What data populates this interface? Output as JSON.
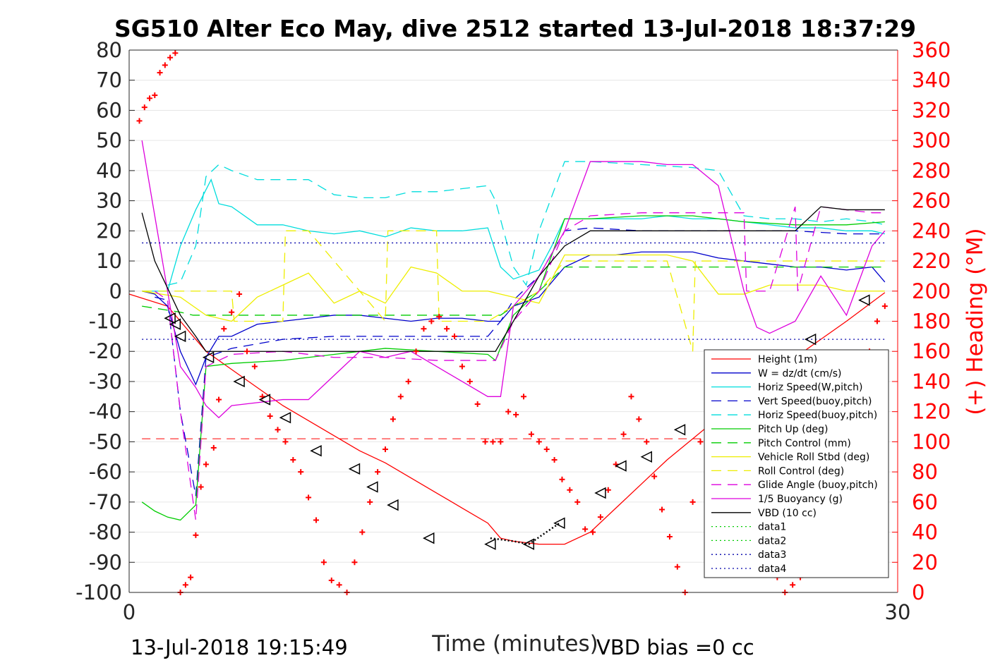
{
  "chart_data": {
    "type": "line",
    "title": "SG510 Alter Eco May, dive 2512 started 13-Jul-2018 18:37:29",
    "xlabel": "Time (minutes)",
    "ylabel_right": "(+) Heading (°M)",
    "xlim": [
      0,
      30
    ],
    "ylim_left": [
      -100,
      80
    ],
    "ylim_right": [
      0,
      360
    ],
    "x_ticks": [
      "0",
      "30"
    ],
    "y_ticks_left": [
      "80",
      "70",
      "60",
      "50",
      "40",
      "30",
      "20",
      "10",
      "0",
      "-10",
      "-20",
      "-30",
      "-40",
      "-50",
      "-60",
      "-70",
      "-80",
      "-90",
      "-100"
    ],
    "y_ticks_right": [
      "360",
      "340",
      "320",
      "300",
      "280",
      "260",
      "240",
      "220",
      "200",
      "180",
      "160",
      "140",
      "120",
      "100",
      "80",
      "60",
      "40",
      "20",
      "0"
    ],
    "grid": "horizontal",
    "legend_placement": "bottom-right",
    "footer_left": "13-Jul-2018 19:15:49",
    "footer_right": "VBD bias =0 cc",
    "colors": {
      "red": "#ff0000",
      "blue": "#0000cc",
      "cyan": "#00dddd",
      "green": "#00cc00",
      "yellow": "#eeee00",
      "magenta": "#dd00dd",
      "black": "#000000",
      "navy": "#0000aa"
    },
    "series": [
      {
        "name": "Height (1m)",
        "color": "#ff0000",
        "style": "solid",
        "x": [
          0,
          1.5,
          2,
          3,
          4,
          5,
          6,
          7,
          8,
          9,
          10,
          11,
          12,
          13,
          14,
          14.5,
          15,
          16,
          17,
          18,
          19,
          20,
          21,
          22,
          23,
          24,
          25,
          26,
          27,
          28,
          29.5
        ],
        "y": [
          -1,
          -5,
          -10,
          -20,
          -26,
          -32,
          -38,
          -43,
          -48,
          -53,
          -57,
          -62,
          -67,
          -72,
          -77,
          -82,
          -83,
          -84,
          -84,
          -80,
          -72,
          -64,
          -56,
          -49,
          -42,
          -35,
          -28,
          -22,
          -16,
          -10,
          -0.5
        ]
      },
      {
        "name": "W = dz/dt (cm/s)",
        "color": "#0000cc",
        "style": "solid",
        "x": [
          0.5,
          1,
          1.5,
          2,
          2.6,
          3,
          3.5,
          4,
          5,
          6,
          7,
          8,
          9,
          10,
          11,
          12,
          13,
          14,
          14.5,
          15,
          16,
          16.5,
          17,
          18,
          19,
          20,
          21,
          22,
          23,
          24,
          25,
          26,
          27,
          28,
          29,
          29.5
        ],
        "y": [
          0,
          -1,
          -5,
          -20,
          -31,
          -22,
          -15,
          -15,
          -11,
          -10,
          -9,
          -8,
          -8,
          -9,
          -10,
          -9,
          -9,
          -10,
          -10,
          -5,
          -2,
          3,
          8,
          12,
          12,
          13,
          13,
          13,
          11,
          10,
          9,
          8,
          8,
          7,
          8,
          3
        ]
      },
      {
        "name": "Horiz Speed(W,pitch)",
        "color": "#00dddd",
        "style": "solid",
        "x": [
          0.5,
          1.5,
          2,
          2.6,
          3.2,
          3.5,
          4,
          5,
          6,
          7,
          8,
          9,
          10,
          11,
          12,
          13,
          14,
          14.5,
          15,
          16,
          16.5,
          17,
          18,
          19,
          20,
          21,
          22,
          23,
          24,
          25,
          26,
          27,
          28,
          29,
          29.5
        ],
        "y": [
          0,
          0,
          15,
          27,
          37,
          29,
          28,
          22,
          22,
          20,
          19,
          20,
          18,
          21,
          20,
          20,
          21,
          8,
          4,
          7,
          15,
          24,
          24,
          24,
          24,
          25,
          24,
          24,
          23,
          22,
          21,
          21,
          20,
          20,
          19
        ]
      },
      {
        "name": "Vert Speed(buoy,pitch)",
        "color": "#0000cc",
        "style": "dashed",
        "x": [
          1,
          1.5,
          2,
          2.6,
          3,
          4,
          6,
          8,
          10,
          12,
          14,
          14.5,
          15,
          16,
          17,
          18,
          20,
          22,
          24,
          26,
          28,
          29.5
        ],
        "y": [
          -2,
          -3,
          -40,
          -68,
          -22,
          -19,
          -16,
          -15,
          -15,
          -15,
          -15,
          -10,
          -3,
          5,
          20,
          21,
          20,
          20,
          20,
          20,
          19,
          19
        ]
      },
      {
        "name": "Horiz Speed(buoy,pitch)",
        "color": "#00dddd",
        "style": "dashed",
        "x": [
          1.5,
          2,
          2.6,
          3,
          3.5,
          4,
          5,
          6,
          7,
          8,
          9,
          10,
          11,
          12,
          13,
          14,
          14.3,
          15,
          15.5,
          16,
          17,
          18,
          20,
          22,
          23,
          24,
          25,
          26,
          27,
          28,
          29,
          29.5
        ],
        "y": [
          2,
          3,
          15,
          38,
          42,
          40,
          37,
          37,
          37,
          32,
          31,
          31,
          33,
          33,
          34,
          35,
          30,
          8,
          2,
          20,
          43,
          43,
          42,
          41,
          40,
          25,
          24,
          24,
          23,
          24,
          23,
          22
        ]
      },
      {
        "name": "Pitch Up (deg)",
        "color": "#00cc00",
        "style": "solid",
        "x": [
          0.5,
          1,
          1.5,
          2,
          2.6,
          3,
          4,
          6,
          8,
          10,
          12,
          14,
          14.3,
          15,
          16,
          17,
          18,
          20,
          22,
          24,
          26,
          28,
          29.5
        ],
        "y": [
          -70,
          -73,
          -75,
          -76,
          -71,
          -25,
          -24,
          -23,
          -21,
          -19,
          -20,
          -21,
          -23,
          -8,
          0,
          24,
          24,
          25,
          25,
          23,
          22,
          22,
          23
        ]
      },
      {
        "name": "Pitch Control (mm)",
        "color": "#00cc00",
        "style": "dashed",
        "x": [
          0.5,
          2,
          2.5,
          14,
          14.5,
          15,
          16,
          17,
          29.5
        ],
        "y": [
          -5,
          -7,
          -8,
          -8,
          -8,
          -5,
          0,
          8,
          8
        ]
      },
      {
        "name": "Vehicle Roll Stbd (deg)",
        "color": "#eeee00",
        "style": "solid",
        "x": [
          0.5,
          2,
          3,
          4,
          5,
          6,
          7,
          8,
          9,
          10,
          11,
          12,
          13,
          14,
          15,
          16,
          17,
          18,
          19,
          20,
          21,
          22,
          23,
          24,
          25,
          26,
          27,
          28,
          29,
          29.5
        ],
        "y": [
          0,
          -2,
          -8,
          -10,
          -2,
          2,
          6,
          -4,
          0,
          -4,
          8,
          6,
          0,
          0,
          -2,
          -4,
          12,
          12,
          12,
          12,
          12,
          10,
          -1,
          -1,
          2,
          2,
          2,
          0,
          0,
          0
        ]
      },
      {
        "name": "Roll Control (deg)",
        "color": "#eeee00",
        "style": "dashed",
        "x": [
          0.5,
          4,
          4.1,
          5,
          6,
          6.1,
          7,
          10,
          10.1,
          11,
          12,
          12.1,
          14,
          16,
          17,
          19,
          20,
          21,
          22,
          22.1,
          24,
          29.5
        ],
        "y": [
          0,
          0,
          -10,
          -10,
          -10,
          20,
          20,
          -10,
          20,
          20,
          20,
          -10,
          -10,
          0,
          10,
          10,
          10,
          10,
          -20,
          10,
          10,
          10
        ]
      },
      {
        "name": "Glide Angle (buoy,pitch)",
        "color": "#dd00dd",
        "style": "dashed",
        "x": [
          1,
          1.5,
          2,
          2.6,
          3,
          4,
          6,
          8,
          10,
          12,
          14,
          14.3,
          15,
          16,
          17,
          18,
          20,
          22,
          24,
          24.1,
          25,
          26,
          26.1,
          27,
          28,
          29,
          29.5
        ],
        "y": [
          0,
          -3,
          -40,
          -76,
          -25,
          -21,
          -20,
          -22,
          -22,
          -23,
          -23,
          -23,
          -10,
          0,
          20,
          25,
          26,
          26,
          26,
          0,
          0,
          28,
          0,
          28,
          27,
          26,
          26
        ]
      },
      {
        "name": "1/5 Buoyancy (g)",
        "color": "#dd00dd",
        "style": "solid",
        "x": [
          0.5,
          1,
          1.5,
          2,
          2.6,
          3,
          3.5,
          4,
          5,
          6,
          7,
          8,
          9,
          10,
          11,
          12,
          13,
          14,
          14.5,
          15,
          16,
          17,
          18,
          19,
          20,
          21,
          22,
          23,
          24,
          24.5,
          25,
          26,
          27,
          28,
          29,
          29.5
        ],
        "y": [
          50,
          25,
          0,
          -25,
          -32,
          -38,
          -42,
          -38,
          -37,
          -36,
          -36,
          -28,
          -20,
          -22,
          -20,
          -25,
          -30,
          -35,
          -35,
          -5,
          5,
          20,
          43,
          43,
          43,
          42,
          42,
          35,
          0,
          -12,
          -14,
          -10,
          5,
          -8,
          15,
          20
        ]
      },
      {
        "name": "VBD (10 cc)",
        "color": "#000000",
        "style": "solid",
        "x": [
          0.5,
          1,
          2,
          2.6,
          3,
          4,
          5,
          6,
          8,
          10,
          12,
          14,
          14.3,
          15,
          16,
          17,
          18,
          20,
          22,
          24,
          26,
          27,
          28,
          29,
          29.5
        ],
        "y": [
          26,
          10,
          -8,
          -15,
          -20,
          -20,
          -20,
          -20,
          -20,
          -20,
          -20,
          -20,
          -20,
          -10,
          5,
          15,
          20,
          20,
          20,
          20,
          20,
          28,
          27,
          27,
          27
        ]
      },
      {
        "name": "data1",
        "color": "#00cc00",
        "style": "dotted",
        "x": [],
        "y": []
      },
      {
        "name": "data2",
        "color": "#00cc00",
        "style": "dotted",
        "x": [],
        "y": []
      },
      {
        "name": "data3",
        "color": "#0000aa",
        "style": "dotted",
        "x": [
          0.5,
          29.5
        ],
        "y": [
          16,
          16
        ]
      },
      {
        "name": "data4",
        "color": "#0000aa",
        "style": "dotted",
        "x": [
          0.5,
          29.5
        ],
        "y": [
          -16,
          -16
        ]
      }
    ],
    "red_dashed_line": {
      "color": "#ff0000",
      "y": -49
    },
    "heading_points": {
      "color": "#ff0000",
      "x": [
        0.4,
        0.6,
        0.8,
        1,
        1.2,
        1.4,
        1.6,
        1.8,
        2,
        2.2,
        2.4,
        2.6,
        2.8,
        3,
        3.3,
        3.5,
        3.7,
        4,
        4.3,
        4.6,
        4.9,
        5.2,
        5.5,
        5.8,
        6.1,
        6.4,
        6.7,
        7,
        7.3,
        7.6,
        7.9,
        8.2,
        8.5,
        8.8,
        9.1,
        9.4,
        9.7,
        10,
        10.3,
        10.6,
        10.9,
        11.2,
        11.5,
        11.8,
        12.1,
        12.4,
        12.7,
        13,
        13.3,
        13.6,
        13.9,
        14.2,
        14.5,
        14.8,
        15.1,
        15.4,
        15.7,
        16,
        16.3,
        16.6,
        16.9,
        17.2,
        17.5,
        17.8,
        18.1,
        18.4,
        18.7,
        19,
        19.3,
        19.6,
        19.9,
        20.2,
        20.5,
        20.8,
        21.1,
        21.4,
        21.7,
        22,
        22.3,
        22.6,
        22.9,
        23.2,
        23.5,
        23.8,
        24.1,
        24.4,
        24.7,
        25,
        25.3,
        25.6,
        25.9,
        26.2,
        26.5,
        26.8,
        27.1,
        27.4,
        27.7,
        28,
        28.3,
        28.6,
        28.9,
        29.2,
        29.5
      ],
      "y": [
        313,
        322,
        328,
        330,
        345,
        350,
        355,
        358,
        0,
        5,
        10,
        38,
        70,
        85,
        96,
        128,
        175,
        186,
        198,
        160,
        150,
        130,
        117,
        108,
        100,
        88,
        80,
        63,
        48,
        20,
        8,
        5,
        0,
        20,
        40,
        60,
        80,
        95,
        115,
        130,
        140,
        160,
        175,
        180,
        183,
        175,
        170,
        150,
        140,
        125,
        100,
        100,
        100,
        120,
        118,
        130,
        105,
        100,
        95,
        88,
        75,
        68,
        60,
        42,
        40,
        50,
        68,
        85,
        105,
        130,
        115,
        100,
        77,
        55,
        37,
        17,
        0,
        60,
        100,
        110,
        120,
        105,
        100,
        90,
        80,
        60,
        40,
        20,
        10,
        0,
        5,
        10,
        15,
        20,
        40,
        60,
        80,
        100,
        120,
        140,
        160,
        180,
        190
      ]
    },
    "triangle_markers": {
      "x": [
        1.6,
        1.8,
        2,
        3.1,
        4.3,
        5.3,
        6.1,
        7.3,
        8.8,
        9.5,
        10.3,
        11.7,
        14.1,
        15.6,
        16.8,
        18.4,
        19.2,
        20.2,
        21.5,
        26.6,
        28.7
      ],
      "y": [
        -9,
        -11,
        -15,
        -22,
        -30,
        -36,
        -42,
        -53,
        -59,
        -65,
        -71,
        -82,
        -84,
        -84,
        -77,
        -67,
        -58,
        -55,
        -46,
        -16,
        -3
      ]
    }
  }
}
